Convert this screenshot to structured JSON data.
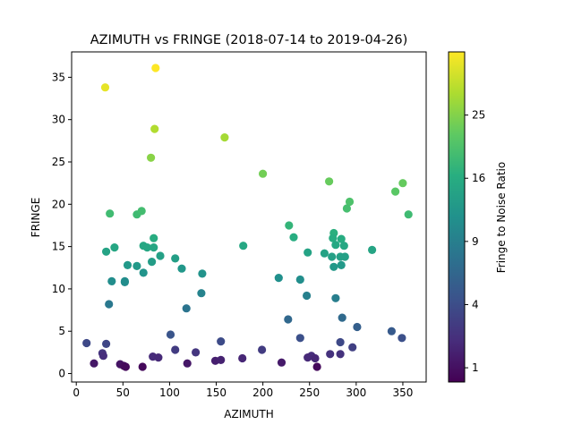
{
  "chart_data": {
    "type": "scatter",
    "title": "AZIMUTH vs FRINGE (2018-07-14 to 2019-04-26)",
    "xlabel": "AZIMUTH",
    "ylabel": "FRINGE",
    "xlim": [
      -5,
      375
    ],
    "ylim": [
      -1,
      38
    ],
    "xticks": [
      0,
      50,
      100,
      150,
      200,
      250,
      300,
      350
    ],
    "yticks": [
      0,
      5,
      10,
      15,
      20,
      25,
      30,
      35
    ],
    "grid": false,
    "colorbar": {
      "label": "Fringe to Noise Ratio",
      "scale": "sqrt",
      "range": [
        0.6,
        36
      ],
      "ticks": [
        1,
        4,
        9,
        16,
        25
      ],
      "colormap": "viridis"
    },
    "points": [
      {
        "x": 31,
        "y": 33.8
      },
      {
        "x": 85,
        "y": 36.1
      },
      {
        "x": 84,
        "y": 28.9
      },
      {
        "x": 80,
        "y": 25.5
      },
      {
        "x": 159,
        "y": 27.9
      },
      {
        "x": 200,
        "y": 23.6
      },
      {
        "x": 271,
        "y": 22.7
      },
      {
        "x": 350,
        "y": 22.5
      },
      {
        "x": 342,
        "y": 21.5
      },
      {
        "x": 293,
        "y": 20.3
      },
      {
        "x": 290,
        "y": 19.5
      },
      {
        "x": 356,
        "y": 18.8
      },
      {
        "x": 36,
        "y": 18.9
      },
      {
        "x": 65,
        "y": 18.8
      },
      {
        "x": 70,
        "y": 19.2
      },
      {
        "x": 228,
        "y": 17.5
      },
      {
        "x": 233,
        "y": 16.1
      },
      {
        "x": 276,
        "y": 16.6
      },
      {
        "x": 275,
        "y": 16.0
      },
      {
        "x": 284,
        "y": 15.9
      },
      {
        "x": 278,
        "y": 15.2
      },
      {
        "x": 287,
        "y": 15.1
      },
      {
        "x": 317,
        "y": 14.6
      },
      {
        "x": 83,
        "y": 16.0
      },
      {
        "x": 72,
        "y": 15.1
      },
      {
        "x": 76,
        "y": 14.9
      },
      {
        "x": 83,
        "y": 14.9
      },
      {
        "x": 41,
        "y": 14.9
      },
      {
        "x": 32,
        "y": 14.4
      },
      {
        "x": 179,
        "y": 15.1
      },
      {
        "x": 248,
        "y": 14.3
      },
      {
        "x": 266,
        "y": 14.2
      },
      {
        "x": 274,
        "y": 13.8
      },
      {
        "x": 283,
        "y": 13.8
      },
      {
        "x": 288,
        "y": 13.8
      },
      {
        "x": 276,
        "y": 12.6
      },
      {
        "x": 284,
        "y": 12.8
      },
      {
        "x": 90,
        "y": 13.9
      },
      {
        "x": 106,
        "y": 13.6
      },
      {
        "x": 81,
        "y": 13.2
      },
      {
        "x": 55,
        "y": 12.8
      },
      {
        "x": 65,
        "y": 12.7
      },
      {
        "x": 113,
        "y": 12.4
      },
      {
        "x": 72,
        "y": 11.9
      },
      {
        "x": 135,
        "y": 11.8
      },
      {
        "x": 217,
        "y": 11.3
      },
      {
        "x": 240,
        "y": 11.1
      },
      {
        "x": 38,
        "y": 10.9
      },
      {
        "x": 52,
        "y": 10.8
      },
      {
        "x": 52,
        "y": 10.9
      },
      {
        "x": 134,
        "y": 9.5
      },
      {
        "x": 247,
        "y": 9.2
      },
      {
        "x": 278,
        "y": 8.9
      },
      {
        "x": 35,
        "y": 8.2
      },
      {
        "x": 118,
        "y": 7.7
      },
      {
        "x": 227,
        "y": 6.4
      },
      {
        "x": 285,
        "y": 6.6
      },
      {
        "x": 301,
        "y": 5.5
      },
      {
        "x": 338,
        "y": 5.0
      },
      {
        "x": 101,
        "y": 4.6
      },
      {
        "x": 349,
        "y": 4.2
      },
      {
        "x": 240,
        "y": 4.2
      },
      {
        "x": 155,
        "y": 3.8
      },
      {
        "x": 11,
        "y": 3.6
      },
      {
        "x": 32,
        "y": 3.5
      },
      {
        "x": 283,
        "y": 3.7
      },
      {
        "x": 296,
        "y": 3.1
      },
      {
        "x": 106,
        "y": 2.8
      },
      {
        "x": 199,
        "y": 2.8
      },
      {
        "x": 128,
        "y": 2.5
      },
      {
        "x": 272,
        "y": 2.3
      },
      {
        "x": 283,
        "y": 2.3
      },
      {
        "x": 28,
        "y": 2.4
      },
      {
        "x": 29,
        "y": 2.1
      },
      {
        "x": 82,
        "y": 2.0
      },
      {
        "x": 88,
        "y": 1.9
      },
      {
        "x": 252,
        "y": 2.1
      },
      {
        "x": 256,
        "y": 1.8
      },
      {
        "x": 248,
        "y": 1.9
      },
      {
        "x": 178,
        "y": 1.8
      },
      {
        "x": 149,
        "y": 1.5
      },
      {
        "x": 155,
        "y": 1.6
      },
      {
        "x": 19,
        "y": 1.2
      },
      {
        "x": 119,
        "y": 1.2
      },
      {
        "x": 220,
        "y": 1.3
      },
      {
        "x": 47,
        "y": 1.1
      },
      {
        "x": 51,
        "y": 0.9
      },
      {
        "x": 53,
        "y": 0.8
      },
      {
        "x": 71,
        "y": 0.8
      },
      {
        "x": 258,
        "y": 0.8
      }
    ]
  }
}
